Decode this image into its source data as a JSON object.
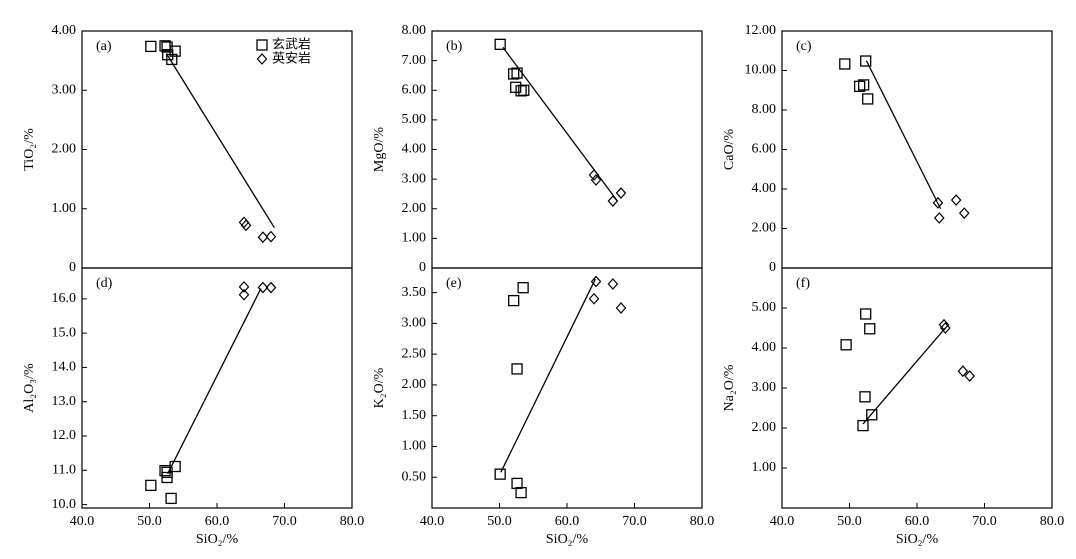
{
  "chart_data": [
    {
      "type": "scatter",
      "label": "(a)",
      "y_label": "TiO₂/%",
      "xlim": [
        40,
        80
      ],
      "ylim": [
        0,
        4
      ],
      "yticks": [
        0,
        {
          "value": 1,
          "label": "1.00"
        },
        {
          "value": 2,
          "label": "2.00"
        },
        {
          "value": 3,
          "label": "3.00"
        },
        {
          "value": 4,
          "label": "4.00"
        }
      ],
      "legend": true,
      "series": [
        {
          "name": "玄武岩",
          "marker": "square",
          "x": [
            50.2,
            52.3,
            52.6,
            52.7,
            53.3,
            53.8
          ],
          "values": [
            3.74,
            3.75,
            3.73,
            3.6,
            3.52,
            3.66
          ]
        },
        {
          "name": "英安岩",
          "marker": "diamond",
          "x": [
            64.0,
            64.3,
            66.8,
            68.0
          ],
          "values": [
            0.77,
            0.72,
            0.52,
            0.53
          ]
        }
      ],
      "trend": {
        "x": [
          52.5,
          68.5
        ],
        "values": [
          3.62,
          0.68
        ]
      }
    },
    {
      "type": "scatter",
      "label": "(b)",
      "y_label": "MgO/%",
      "xlim": [
        40,
        80
      ],
      "ylim": [
        0,
        8
      ],
      "yticks": [
        0,
        {
          "value": 1,
          "label": "1.00"
        },
        {
          "value": 2,
          "label": "2.00"
        },
        {
          "value": 3,
          "label": "3.00"
        },
        {
          "value": 4,
          "label": "4.00"
        },
        {
          "value": 5,
          "label": "5.00"
        },
        {
          "value": 6,
          "label": "6.00"
        },
        {
          "value": 7,
          "label": "7.00"
        },
        {
          "value": 8,
          "label": "8.00"
        }
      ],
      "series": [
        {
          "marker": "square",
          "x": [
            50.1,
            52.1,
            52.6,
            52.4,
            53.2,
            53.6
          ],
          "values": [
            7.55,
            6.55,
            6.58,
            6.1,
            5.98,
            6.0
          ]
        },
        {
          "marker": "diamond",
          "x": [
            64.0,
            64.3,
            66.8,
            68.0
          ],
          "values": [
            3.14,
            2.97,
            2.26,
            2.53
          ]
        }
      ],
      "trend": {
        "x": [
          50.5,
          67.5
        ],
        "values": [
          7.45,
          2.25
        ]
      }
    },
    {
      "type": "scatter",
      "label": "(c)",
      "y_label": "CaO/%",
      "xlim": [
        40,
        80
      ],
      "ylim": [
        0,
        12
      ],
      "yticks": [
        0,
        {
          "value": 2,
          "label": "2.00"
        },
        {
          "value": 4,
          "label": "4.00"
        },
        {
          "value": 6,
          "label": "6.00"
        },
        {
          "value": 8,
          "label": "8.00"
        },
        {
          "value": 10,
          "label": "10.00"
        },
        {
          "value": 12,
          "label": "12.00"
        }
      ],
      "series": [
        {
          "marker": "square",
          "x": [
            49.3,
            52.1,
            51.5,
            52.4,
            52.7
          ],
          "values": [
            10.33,
            9.27,
            9.2,
            10.48,
            8.56
          ]
        },
        {
          "marker": "diamond",
          "x": [
            63.1,
            63.3,
            65.8,
            67.0
          ],
          "values": [
            3.3,
            2.53,
            3.44,
            2.78
          ]
        }
      ],
      "trend": {
        "x": [
          52.5,
          63.5
        ],
        "values": [
          10.5,
          3.0
        ]
      }
    },
    {
      "type": "scatter",
      "label": "(d)",
      "y_label": "Al₂O₃/%",
      "x_label": "SiO₂/%",
      "xlim": [
        40,
        80
      ],
      "ylim": [
        9.9,
        16.9
      ],
      "xticks": [
        {
          "value": 40,
          "label": "40.0"
        },
        {
          "value": 50,
          "label": "50.0"
        },
        {
          "value": 60,
          "label": "60.0"
        },
        {
          "value": 70,
          "label": "70.0"
        },
        {
          "value": 80,
          "label": "80.0"
        }
      ],
      "yticks": [
        {
          "value": 10,
          "label": "10.0"
        },
        {
          "value": 11,
          "label": "11.0"
        },
        {
          "value": 12,
          "label": "12.0"
        },
        {
          "value": 13,
          "label": "13.0"
        },
        {
          "value": 14,
          "label": "14.0"
        },
        {
          "value": 15,
          "label": "15.0"
        },
        {
          "value": 16,
          "label": "16.0"
        }
      ],
      "series": [
        {
          "marker": "square",
          "x": [
            50.2,
            52.3,
            52.6,
            52.6,
            53.8,
            53.2
          ],
          "values": [
            10.56,
            10.99,
            10.94,
            10.79,
            11.11,
            10.18
          ]
        },
        {
          "marker": "diamond",
          "x": [
            64.0,
            64.0,
            66.8,
            68.0
          ],
          "values": [
            16.35,
            16.12,
            16.33,
            16.33
          ]
        }
      ],
      "trend": {
        "x": [
          52.7,
          66.5
        ],
        "values": [
          10.9,
          16.3
        ]
      }
    },
    {
      "type": "scatter",
      "label": "(e)",
      "y_label": "K₂O/%",
      "x_label": "SiO₂/%",
      "xlim": [
        40,
        80
      ],
      "ylim": [
        0,
        3.9
      ],
      "xticks": [
        {
          "value": 40,
          "label": "40.0"
        },
        {
          "value": 50,
          "label": "50.0"
        },
        {
          "value": 60,
          "label": "60.0"
        },
        {
          "value": 70,
          "label": "70.0"
        },
        {
          "value": 80,
          "label": "80.0"
        }
      ],
      "yticks": [
        {
          "value": 0.5,
          "label": "0.50"
        },
        {
          "value": 1,
          "label": "1.00"
        },
        {
          "value": 1.5,
          "label": "1.50"
        },
        {
          "value": 2,
          "label": "2.00"
        },
        {
          "value": 2.5,
          "label": "2.50"
        },
        {
          "value": 3,
          "label": "3.00"
        },
        {
          "value": 3.5,
          "label": "3.50"
        }
      ],
      "series": [
        {
          "marker": "square",
          "x": [
            50.1,
            52.1,
            53.5,
            52.6,
            52.6,
            53.2
          ],
          "values": [
            0.55,
            3.37,
            3.58,
            2.26,
            0.4,
            0.25
          ]
        },
        {
          "marker": "diamond",
          "x": [
            64.3,
            64.0,
            66.8,
            68.0
          ],
          "values": [
            3.68,
            3.4,
            3.64,
            3.25
          ]
        }
      ],
      "trend": {
        "x": [
          50.2,
          64.2
        ],
        "values": [
          0.58,
          3.72
        ]
      }
    },
    {
      "type": "scatter",
      "label": "(f)",
      "y_label": "Na₂O/%",
      "x_label": "SiO₂/%",
      "xlim": [
        40,
        80
      ],
      "ylim": [
        0,
        6
      ],
      "xticks": [
        {
          "value": 40,
          "label": "40.0"
        },
        {
          "value": 50,
          "label": "50.0"
        },
        {
          "value": 60,
          "label": "60.0"
        },
        {
          "value": 70,
          "label": "70.0"
        },
        {
          "value": 80,
          "label": "80.0"
        }
      ],
      "yticks": [
        {
          "value": 1,
          "label": "1.00"
        },
        {
          "value": 2,
          "label": "2.00"
        },
        {
          "value": 3,
          "label": "3.00"
        },
        {
          "value": 4,
          "label": "4.00"
        },
        {
          "value": 5,
          "label": "5.00"
        }
      ],
      "series": [
        {
          "marker": "square",
          "x": [
            49.5,
            52.4,
            53.0,
            52.3,
            53.3,
            52.0
          ],
          "values": [
            4.08,
            4.85,
            4.48,
            2.78,
            2.33,
            2.06
          ]
        },
        {
          "marker": "diamond",
          "x": [
            64.0,
            64.2,
            66.8,
            67.8
          ],
          "values": [
            4.58,
            4.5,
            3.42,
            3.3
          ]
        }
      ],
      "trend": {
        "x": [
          52.0,
          64.2
        ],
        "values": [
          2.1,
          4.5
        ]
      }
    }
  ]
}
